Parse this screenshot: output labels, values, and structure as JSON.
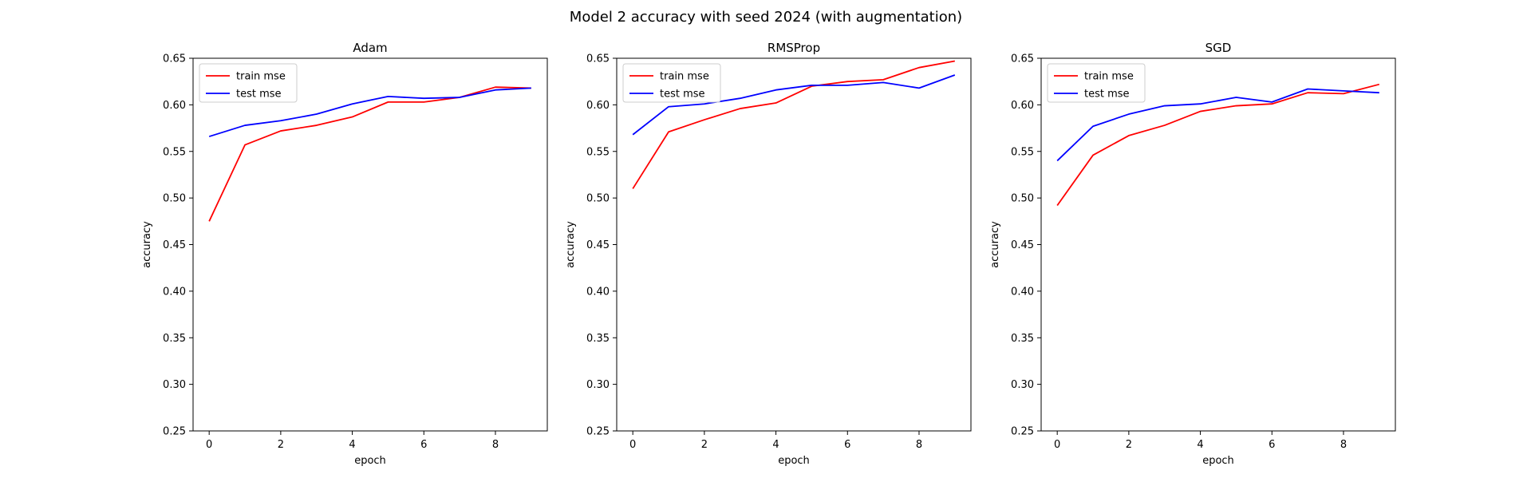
{
  "figure": {
    "suptitle": "Model 2 accuracy with seed 2024 (with augmentation)"
  },
  "chart_data": [
    {
      "type": "line",
      "title": "Adam",
      "xlabel": "epoch",
      "ylabel": "accuracy",
      "x": [
        0,
        1,
        2,
        3,
        4,
        5,
        6,
        7,
        8,
        9
      ],
      "xlim": [
        -0.45,
        9.45
      ],
      "ylim": [
        0.25,
        0.65
      ],
      "xticks": [
        "0",
        "2",
        "4",
        "6",
        "8"
      ],
      "yticks": [
        "0.25",
        "0.30",
        "0.35",
        "0.40",
        "0.45",
        "0.50",
        "0.55",
        "0.60",
        "0.65"
      ],
      "legend_position": "upper left",
      "grid": false,
      "series": [
        {
          "name": "train mse",
          "color": "#ff0000",
          "values": [
            0.475,
            0.557,
            0.572,
            0.578,
            0.587,
            0.603,
            0.603,
            0.608,
            0.619,
            0.618
          ]
        },
        {
          "name": "test mse",
          "color": "#0000ff",
          "values": [
            0.566,
            0.578,
            0.583,
            0.59,
            0.601,
            0.609,
            0.607,
            0.608,
            0.616,
            0.618
          ]
        }
      ]
    },
    {
      "type": "line",
      "title": "RMSProp",
      "xlabel": "epoch",
      "ylabel": "accuracy",
      "x": [
        0,
        1,
        2,
        3,
        4,
        5,
        6,
        7,
        8,
        9
      ],
      "xlim": [
        -0.45,
        9.45
      ],
      "ylim": [
        0.25,
        0.65
      ],
      "xticks": [
        "0",
        "2",
        "4",
        "6",
        "8"
      ],
      "yticks": [
        "0.25",
        "0.30",
        "0.35",
        "0.40",
        "0.45",
        "0.50",
        "0.55",
        "0.60",
        "0.65"
      ],
      "legend_position": "upper left",
      "grid": false,
      "series": [
        {
          "name": "train mse",
          "color": "#ff0000",
          "values": [
            0.51,
            0.571,
            0.584,
            0.596,
            0.602,
            0.62,
            0.625,
            0.627,
            0.64,
            0.647
          ]
        },
        {
          "name": "test mse",
          "color": "#0000ff",
          "values": [
            0.568,
            0.598,
            0.601,
            0.607,
            0.616,
            0.621,
            0.621,
            0.624,
            0.618,
            0.632
          ]
        }
      ]
    },
    {
      "type": "line",
      "title": "SGD",
      "xlabel": "epoch",
      "ylabel": "accuracy",
      "x": [
        0,
        1,
        2,
        3,
        4,
        5,
        6,
        7,
        8,
        9
      ],
      "xlim": [
        -0.45,
        9.45
      ],
      "ylim": [
        0.25,
        0.65
      ],
      "xticks": [
        "0",
        "2",
        "4",
        "6",
        "8"
      ],
      "yticks": [
        "0.25",
        "0.30",
        "0.35",
        "0.40",
        "0.45",
        "0.50",
        "0.55",
        "0.60",
        "0.65"
      ],
      "legend_position": "upper left",
      "grid": false,
      "series": [
        {
          "name": "train mse",
          "color": "#ff0000",
          "values": [
            0.492,
            0.546,
            0.567,
            0.578,
            0.593,
            0.599,
            0.601,
            0.613,
            0.612,
            0.622
          ]
        },
        {
          "name": "test mse",
          "color": "#0000ff",
          "values": [
            0.54,
            0.577,
            0.59,
            0.599,
            0.601,
            0.608,
            0.603,
            0.617,
            0.615,
            0.613
          ]
        }
      ]
    }
  ]
}
